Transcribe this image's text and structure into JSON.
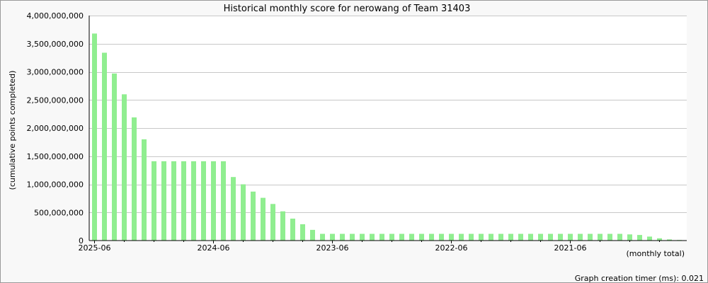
{
  "chart_data": {
    "type": "bar",
    "title": "Historical monthly score for nerowang of Team 31403",
    "ylabel": "(cumulative points completed)",
    "xlabel": "(monthly total)",
    "ylim": [
      0,
      4000000000
    ],
    "y_ticks": [
      0,
      500000000,
      1000000000,
      1500000000,
      2000000000,
      2500000000,
      3000000000,
      3500000000,
      4000000000
    ],
    "y_tick_labels": [
      "0",
      "500,000,000",
      "1,000,000,000",
      "1,500,000,000",
      "2,000,000,000",
      "2,500,000,000",
      "3,000,000,000",
      "3,500,000,000",
      "4,000,000,000"
    ],
    "x_tick_labels": [
      {
        "label": "2025-06",
        "index": 0
      },
      {
        "label": "2024-06",
        "index": 12
      },
      {
        "label": "2023-06",
        "index": 24
      },
      {
        "label": "2022-06",
        "index": 36
      },
      {
        "label": "2021-06",
        "index": 48
      }
    ],
    "grid": true,
    "bar_color": "#90ee90",
    "categories": [
      "2025-06",
      "2025-05",
      "2025-04",
      "2025-03",
      "2025-02",
      "2025-01",
      "2024-12",
      "2024-11",
      "2024-10",
      "2024-09",
      "2024-08",
      "2024-07",
      "2024-06",
      "2024-05",
      "2024-04",
      "2024-03",
      "2024-02",
      "2024-01",
      "2023-12",
      "2023-11",
      "2023-10",
      "2023-09",
      "2023-08",
      "2023-07",
      "2023-06",
      "2023-05",
      "2023-04",
      "2023-03",
      "2023-02",
      "2023-01",
      "2022-12",
      "2022-11",
      "2022-10",
      "2022-09",
      "2022-08",
      "2022-07",
      "2022-06",
      "2022-05",
      "2022-04",
      "2022-03",
      "2022-02",
      "2022-01",
      "2021-12",
      "2021-11",
      "2021-10",
      "2021-09",
      "2021-08",
      "2021-07",
      "2021-06",
      "2021-05",
      "2021-04",
      "2021-03",
      "2021-02",
      "2021-01",
      "2020-12",
      "2020-11",
      "2020-10",
      "2020-09",
      "2020-08",
      "2020-07"
    ],
    "values": [
      3680000000,
      3340000000,
      2970000000,
      2600000000,
      2190000000,
      1800000000,
      1410000000,
      1410000000,
      1410000000,
      1410000000,
      1410000000,
      1410000000,
      1410000000,
      1410000000,
      1130000000,
      1000000000,
      870000000,
      760000000,
      650000000,
      520000000,
      390000000,
      290000000,
      190000000,
      120000000,
      120000000,
      120000000,
      120000000,
      120000000,
      120000000,
      120000000,
      120000000,
      120000000,
      120000000,
      120000000,
      120000000,
      120000000,
      120000000,
      120000000,
      120000000,
      120000000,
      120000000,
      120000000,
      120000000,
      120000000,
      120000000,
      120000000,
      120000000,
      120000000,
      120000000,
      120000000,
      120000000,
      120000000,
      120000000,
      120000000,
      110000000,
      100000000,
      70000000,
      40000000,
      20000000,
      10000000
    ]
  },
  "footer": {
    "timer_text": "Graph creation timer (ms): 0.021"
  }
}
